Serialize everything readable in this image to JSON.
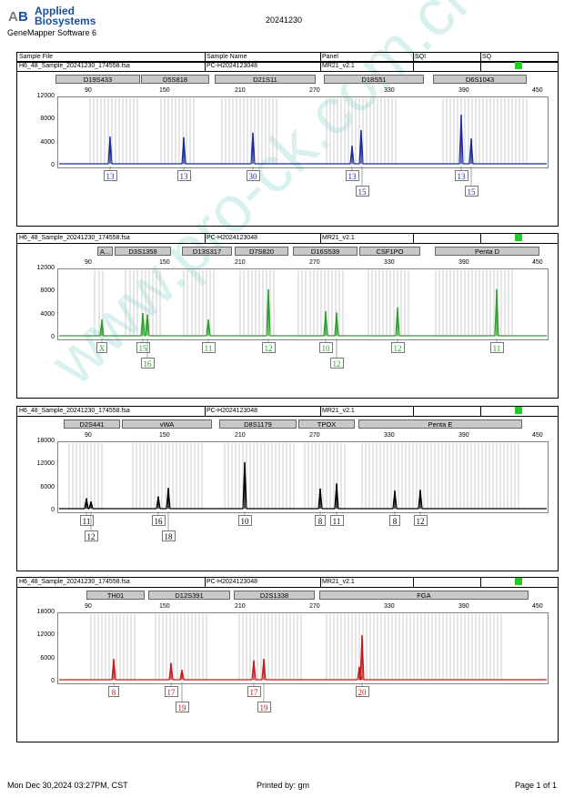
{
  "header": {
    "logo_line1": "Applied",
    "logo_line2": "Biosystems",
    "software": "GeneMapper Software 6",
    "date": "20241230",
    "columns": [
      "Sample File",
      "Sample Name",
      "Panel",
      "SQI",
      "SQ"
    ]
  },
  "watermark": "www.pro-ck.com.cn",
  "sample": {
    "file": "H6_48_Sample_20241230_174558.fsa",
    "name": "PC-H2024123048",
    "panel": "MR21_v2.1"
  },
  "scale_ticks": [
    "90",
    "150",
    "210",
    "270",
    "330",
    "390",
    "450"
  ],
  "colors": {
    "blue": "#1b2a9a",
    "green": "#2aa02a",
    "black": "#000000",
    "red": "#c41a1a",
    "quality": "#22cc22"
  },
  "panels": [
    {
      "color": "blue",
      "yticks": [
        "12000",
        "8000",
        "4000",
        "0"
      ],
      "loci": [
        "D19S433",
        "D5S818",
        "D21S11",
        "D18S51",
        "D6S1043"
      ],
      "alleles": [
        "13",
        "13",
        "30",
        "13",
        "15",
        "13",
        "15"
      ]
    },
    {
      "color": "green",
      "yticks": [
        "12000",
        "8000",
        "4000",
        "0"
      ],
      "loci": [
        "A...",
        "D3S1358",
        "D13S317",
        "D7S820",
        "D16S539",
        "CSF1PO",
        "Penta D"
      ],
      "alleles": [
        "X",
        "15",
        "16",
        "11",
        "12",
        "10",
        "12",
        "12",
        "11"
      ]
    },
    {
      "color": "black",
      "yticks": [
        "18000",
        "12000",
        "6000",
        "0"
      ],
      "loci": [
        "D2S441",
        "vWA",
        "D8S1179",
        "TPOX",
        "Penta E"
      ],
      "alleles": [
        "11",
        "12",
        "16",
        "18",
        "10",
        "8",
        "11",
        "8",
        "12"
      ]
    },
    {
      "color": "red",
      "yticks": [
        "18000",
        "12000",
        "6000",
        "0"
      ],
      "loci": [
        "TH01",
        "D12S391",
        "D2S1338",
        "FGA"
      ],
      "alleles": [
        "8",
        "17",
        "19",
        "17",
        "19",
        "20"
      ]
    }
  ],
  "footer": {
    "printed_at": "Mon Dec 30,2024 03:27PM, CST",
    "printed_by": "Printed by: gm",
    "page": "Page 1 of 1"
  }
}
